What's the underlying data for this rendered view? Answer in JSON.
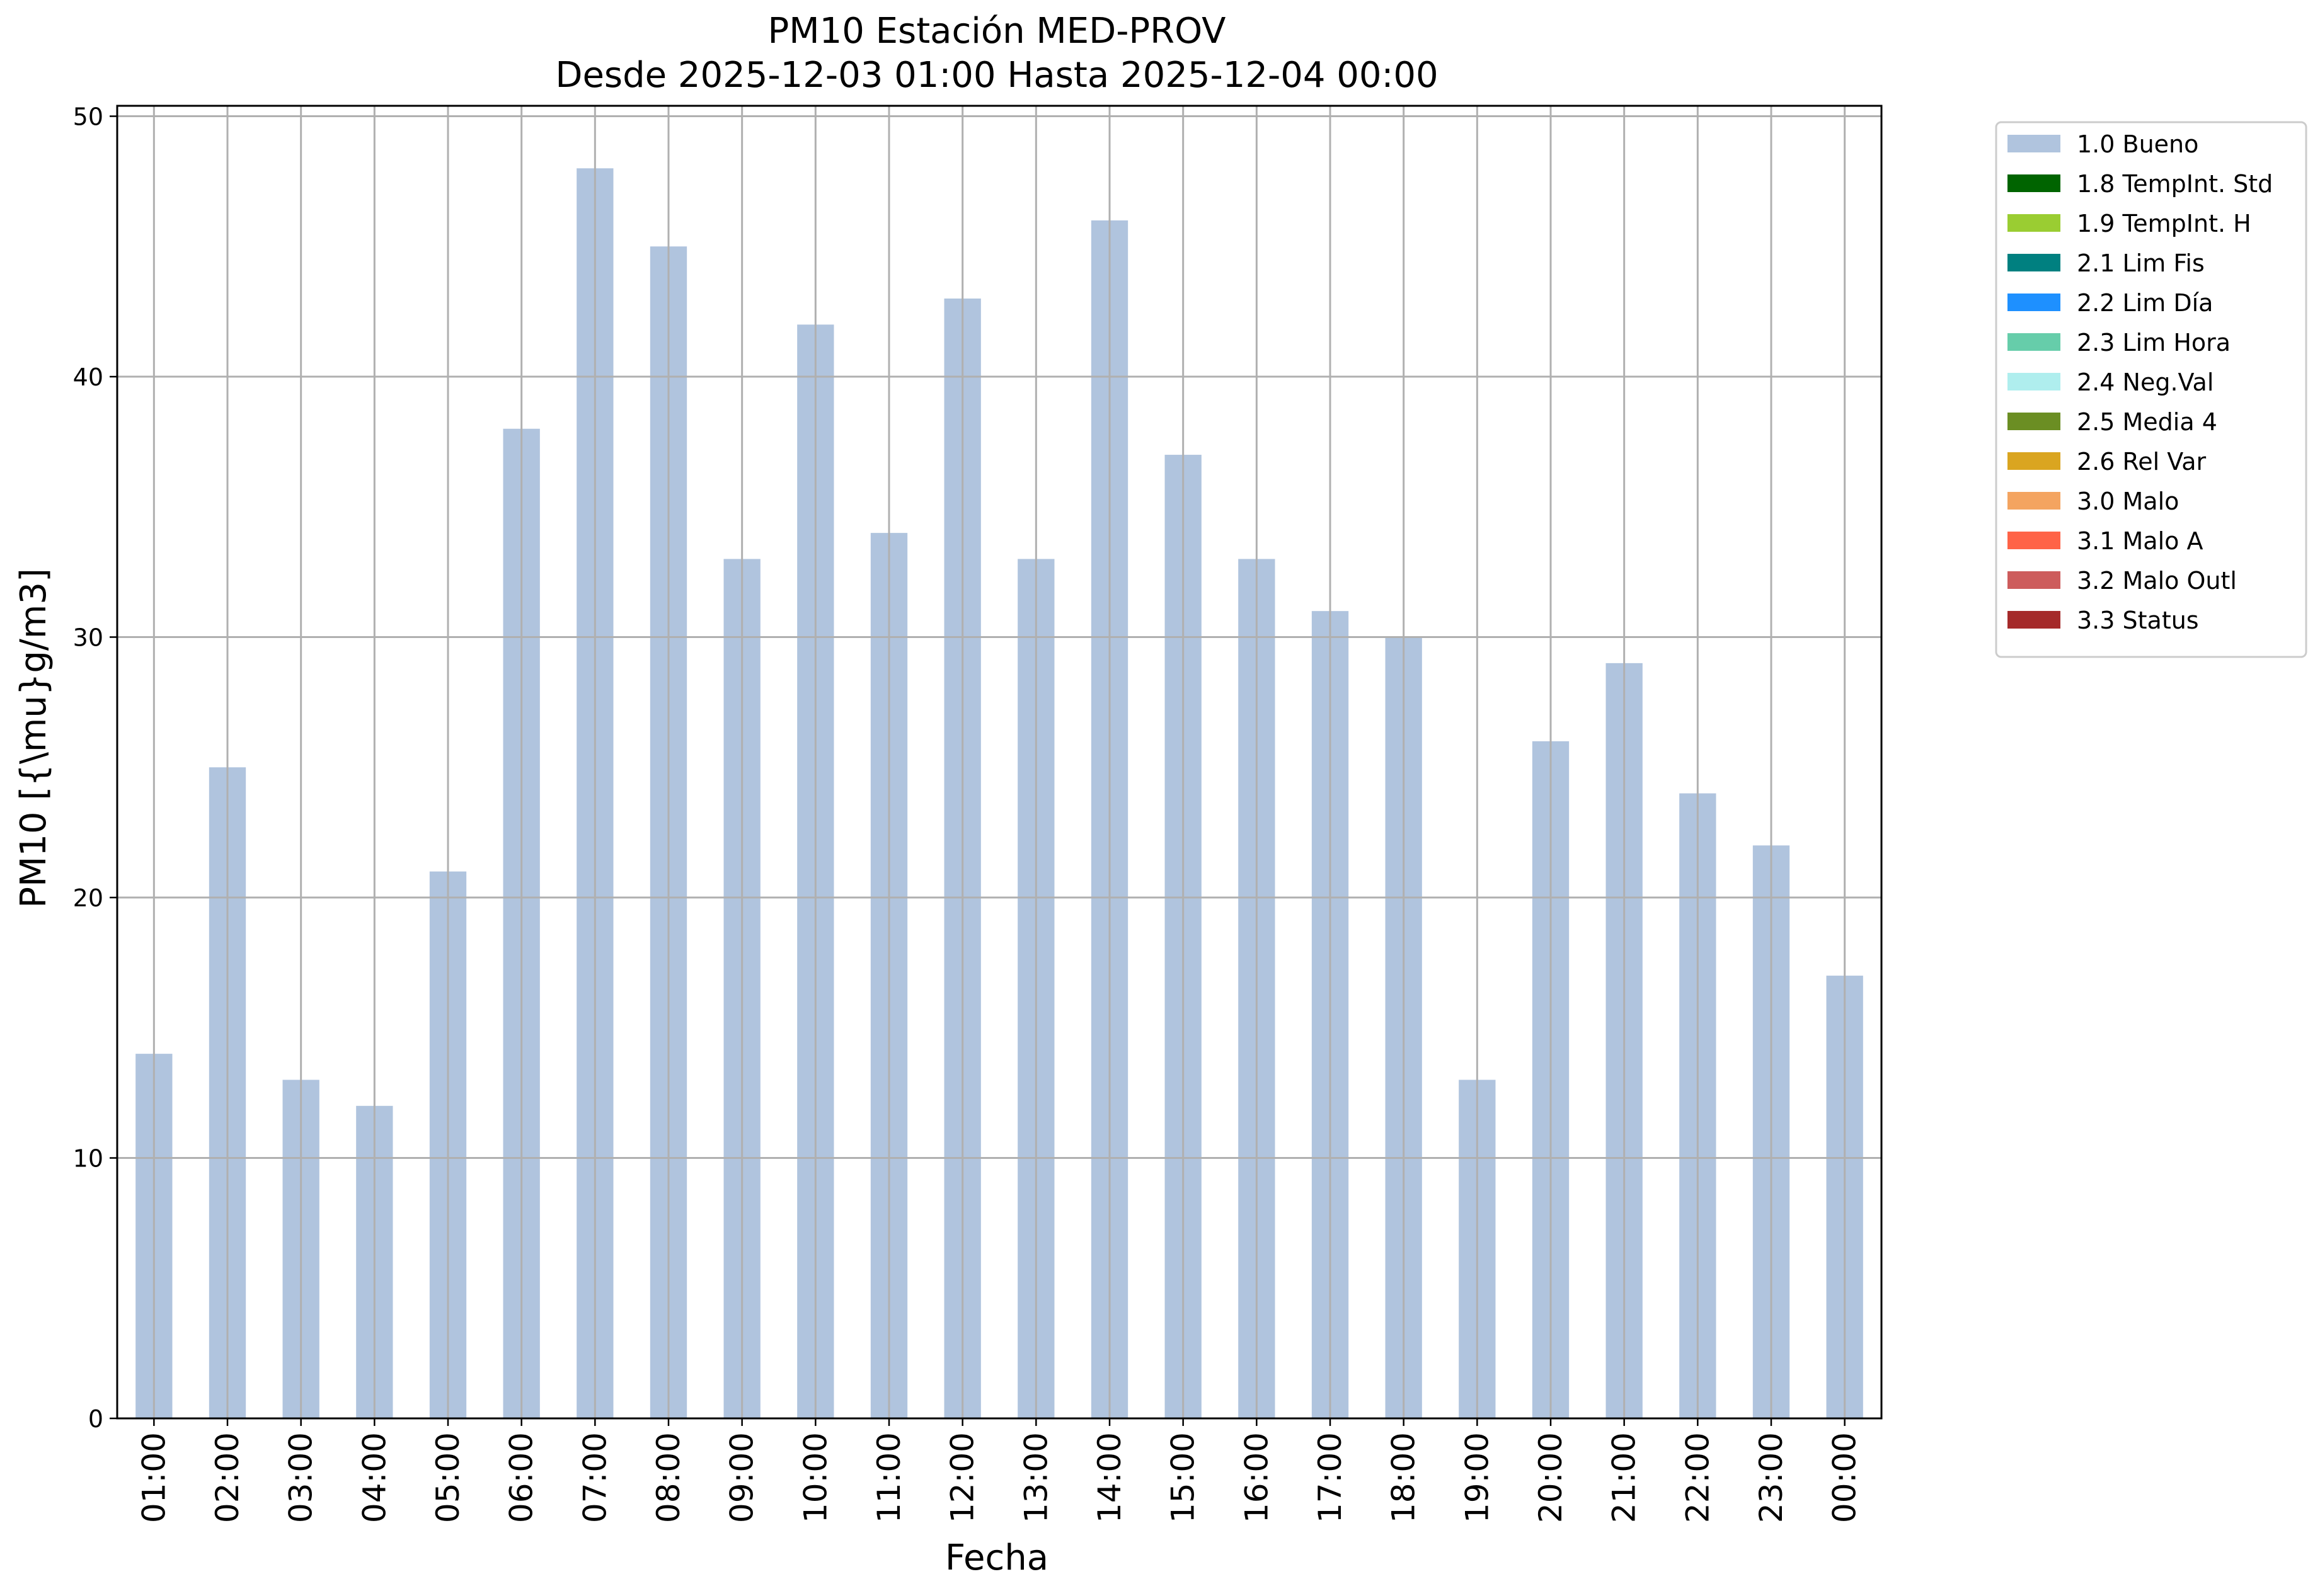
{
  "chart_data": {
    "type": "bar",
    "title": "PM10 Estación MED-PROV",
    "subtitle": "Desde 2025-12-03 01:00 Hasta 2025-12-04 00:00",
    "xlabel": "Fecha",
    "ylabel": "PM10 [{\\mu}g/m3]",
    "categories": [
      "01:00",
      "02:00",
      "03:00",
      "04:00",
      "05:00",
      "06:00",
      "07:00",
      "08:00",
      "09:00",
      "10:00",
      "11:00",
      "12:00",
      "13:00",
      "14:00",
      "15:00",
      "16:00",
      "17:00",
      "18:00",
      "19:00",
      "20:00",
      "21:00",
      "22:00",
      "23:00",
      "00:00"
    ],
    "series": [
      {
        "name": "1.0 Bueno",
        "color": "#b0c4de",
        "values": [
          14,
          25,
          13,
          12,
          21,
          38,
          48,
          45,
          33,
          42,
          34,
          43,
          33,
          46,
          37,
          33,
          31,
          30,
          13,
          26,
          29,
          24,
          22,
          17
        ]
      }
    ],
    "ylim": [
      0,
      50.4
    ],
    "yticks": [
      0,
      10,
      20,
      30,
      40,
      50
    ],
    "grid": true,
    "legend_position": "outside-top-right",
    "legend": [
      {
        "label": "1.0 Bueno",
        "color": "#b0c4de"
      },
      {
        "label": "1.8 TempInt. Std",
        "color": "#006400"
      },
      {
        "label": "1.9 TempInt. H",
        "color": "#9acd32"
      },
      {
        "label": "2.1 Lim Fis",
        "color": "#008080"
      },
      {
        "label": "2.2 Lim Día",
        "color": "#1e90ff"
      },
      {
        "label": "2.3 Lim Hora",
        "color": "#66cdaa"
      },
      {
        "label": "2.4 Neg.Val",
        "color": "#afeeee"
      },
      {
        "label": "2.5 Media 4",
        "color": "#6b8e23"
      },
      {
        "label": "2.6 Rel Var",
        "color": "#daa520"
      },
      {
        "label": "3.0 Malo",
        "color": "#f4a460"
      },
      {
        "label": "3.1 Malo A",
        "color": "#ff6347"
      },
      {
        "label": "3.2 Malo Outl",
        "color": "#cd5c5c"
      },
      {
        "label": "3.3 Status",
        "color": "#a52a2a"
      }
    ]
  }
}
